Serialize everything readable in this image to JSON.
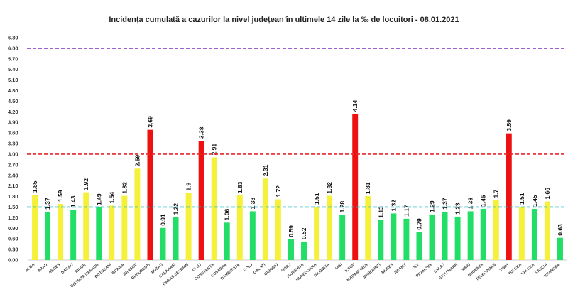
{
  "chart_data": {
    "type": "bar",
    "title": "Incidența cumulată a cazurilor la nivel județean în ultimele 14 zile la ‰ de locuitori - 08.01.2021",
    "xlabel": "",
    "ylabel": "",
    "ylim": [
      0,
      6.3
    ],
    "yticks": [
      "0.00",
      "0.30",
      "0.60",
      "0.90",
      "1.20",
      "1.50",
      "1.80",
      "2.10",
      "2.40",
      "2.70",
      "3.00",
      "3.30",
      "3.60",
      "3.90",
      "4.20",
      "4.50",
      "4.80",
      "5.10",
      "5.40",
      "5.70",
      "6.00",
      "6.30"
    ],
    "categories": [
      "ALBA",
      "ARAD",
      "ARGES",
      "BACAU",
      "BIHOR",
      "BISTRITA NASAUD",
      "BOTOSANI",
      "BRAILA",
      "BRASOV",
      "BUCURESTI",
      "BUZAU",
      "CALARASI",
      "CARAS SEVERIN",
      "CLUJ",
      "CONSTANTA",
      "COVASNA",
      "DAMBOVITA",
      "DOLJ",
      "GALATI",
      "GIURGIU",
      "GORJ",
      "HARGHITA",
      "HUNEDOARA",
      "IALOMITA",
      "IASI",
      "ILFOV",
      "MARAMURES",
      "MEHEDINTI",
      "MURES",
      "NEAMT",
      "OLT",
      "PRAHOVA",
      "SALAJ",
      "SATU MARE",
      "SIBIU",
      "SUCEAVA",
      "TELEORMAN",
      "TIMIS",
      "TULCEA",
      "VALCEA",
      "VASLUI",
      "VRANCEA"
    ],
    "values": [
      1.85,
      1.37,
      1.59,
      1.43,
      1.92,
      1.49,
      1.54,
      1.82,
      2.59,
      3.69,
      0.91,
      1.22,
      1.9,
      3.38,
      2.91,
      1.06,
      1.83,
      1.38,
      2.31,
      1.72,
      0.59,
      0.52,
      1.51,
      1.82,
      1.28,
      4.14,
      1.81,
      1.13,
      1.32,
      1.17,
      0.79,
      1.29,
      1.37,
      1.23,
      1.38,
      1.45,
      1.7,
      3.59,
      1.51,
      1.45,
      1.66,
      0.63
    ],
    "value_labels": [
      "1.85",
      "1.37",
      "1.59",
      "1.43",
      "1.92",
      "1.49",
      "1.54",
      "1.82",
      "2.59",
      "3.69",
      "0.91",
      "1.22",
      "1.9",
      "3.38",
      "2.91",
      "1.06",
      "1.83",
      "1.38",
      "2.31",
      "1.72",
      "0.59",
      "0.52",
      "1.51",
      "1.82",
      "1.28",
      "4.14",
      "1.81",
      "1.13",
      "1.32",
      "1.17",
      "0.79",
      "1.29",
      "1.37",
      "1.23",
      "1.38",
      "1.45",
      "1.7",
      "3.59",
      "1.51",
      "1.45",
      "1.66",
      "0.63"
    ],
    "thresholds": [
      {
        "value": 6.0,
        "color": "#7b2fbe",
        "style": "dashed"
      },
      {
        "value": 3.0,
        "color": "#e8262a",
        "style": "dashed"
      },
      {
        "value": 1.5,
        "color": "#20b8c8",
        "style": "dashed"
      }
    ],
    "color_rules": {
      "low": "#22dd66",
      "mid": "#f5f03a",
      "high": "#ee1111"
    },
    "legend": "none",
    "grid": false
  }
}
